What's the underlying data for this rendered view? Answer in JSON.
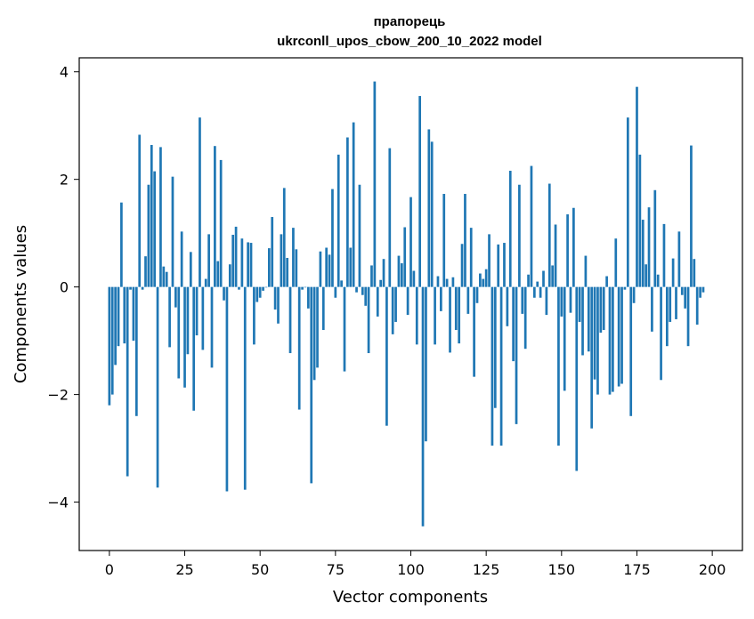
{
  "chart_data": {
    "type": "bar",
    "title_line1": "прапорець",
    "title_line2": "ukrconll_upos_cbow_200_10_2022 model",
    "xlabel": "Vector components",
    "ylabel": "Components values",
    "xlim": [
      -10,
      210
    ],
    "ylim": [
      -4.9,
      4.26
    ],
    "x_ticks": [
      0,
      25,
      50,
      75,
      100,
      125,
      150,
      175,
      200
    ],
    "y_ticks": [
      -4,
      -2,
      0,
      2,
      4
    ],
    "y_tick_labels": [
      "−4",
      "−2",
      "0",
      "2",
      "4"
    ],
    "grid": false,
    "bar_color": "#1f77b4",
    "values": [
      -2.2,
      -2.0,
      -1.45,
      -1.1,
      1.57,
      -1.05,
      -3.52,
      -0.05,
      -1.0,
      -2.4,
      2.83,
      -0.05,
      0.57,
      1.9,
      2.64,
      2.15,
      -3.73,
      2.6,
      0.38,
      0.28,
      -1.12,
      2.05,
      -0.38,
      -1.7,
      1.03,
      -1.87,
      -1.25,
      0.65,
      -2.3,
      -0.9,
      3.15,
      -1.17,
      0.15,
      0.98,
      -1.5,
      2.62,
      0.48,
      2.36,
      -0.25,
      -3.8,
      0.42,
      0.97,
      1.12,
      -0.05,
      0.9,
      -3.77,
      0.83,
      0.82,
      -1.07,
      -0.28,
      -0.2,
      -0.07,
      0.0,
      0.72,
      1.3,
      -0.42,
      -0.68,
      0.98,
      1.84,
      0.54,
      -1.23,
      1.1,
      0.7,
      -2.28,
      -0.05,
      0.0,
      -0.4,
      -3.65,
      -1.73,
      -1.5,
      0.66,
      -0.8,
      0.73,
      0.6,
      1.82,
      -0.2,
      2.46,
      0.12,
      -1.57,
      2.78,
      0.73,
      3.06,
      -0.1,
      1.9,
      -0.15,
      -0.35,
      -1.23,
      0.4,
      3.82,
      -0.55,
      0.13,
      0.52,
      -2.58,
      2.58,
      -0.88,
      -0.65,
      0.58,
      0.44,
      1.11,
      -0.52,
      1.67,
      0.3,
      -1.07,
      3.55,
      -4.45,
      -2.87,
      2.93,
      2.7,
      -1.07,
      0.2,
      -0.45,
      1.73,
      0.15,
      -1.22,
      0.18,
      -0.8,
      -1.05,
      0.8,
      1.73,
      -0.5,
      1.1,
      -1.67,
      -0.3,
      0.25,
      0.15,
      0.33,
      0.98,
      -2.95,
      -2.25,
      0.79,
      -2.95,
      0.82,
      -0.73,
      2.16,
      -1.38,
      -2.55,
      1.9,
      -0.5,
      -1.15,
      0.23,
      2.25,
      -0.2,
      0.1,
      -0.2,
      0.3,
      -0.52,
      1.92,
      0.4,
      1.16,
      -2.95,
      -0.55,
      -1.93,
      1.35,
      -0.48,
      1.47,
      -3.42,
      -0.65,
      -1.27,
      0.58,
      -1.2,
      -2.63,
      -1.72,
      -2.0,
      -0.85,
      -0.8,
      0.2,
      -2.0,
      -1.95,
      0.9,
      -1.85,
      -1.8,
      -0.05,
      3.15,
      -2.4,
      -0.3,
      3.72,
      2.46,
      1.25,
      0.42,
      1.48,
      -0.83,
      1.8,
      0.23,
      -1.73,
      1.17,
      -1.1,
      -0.65,
      0.53,
      -0.6,
      1.03,
      -0.15,
      -0.4,
      -1.1,
      2.63,
      0.52,
      -0.7,
      -0.2,
      -0.1
    ]
  }
}
